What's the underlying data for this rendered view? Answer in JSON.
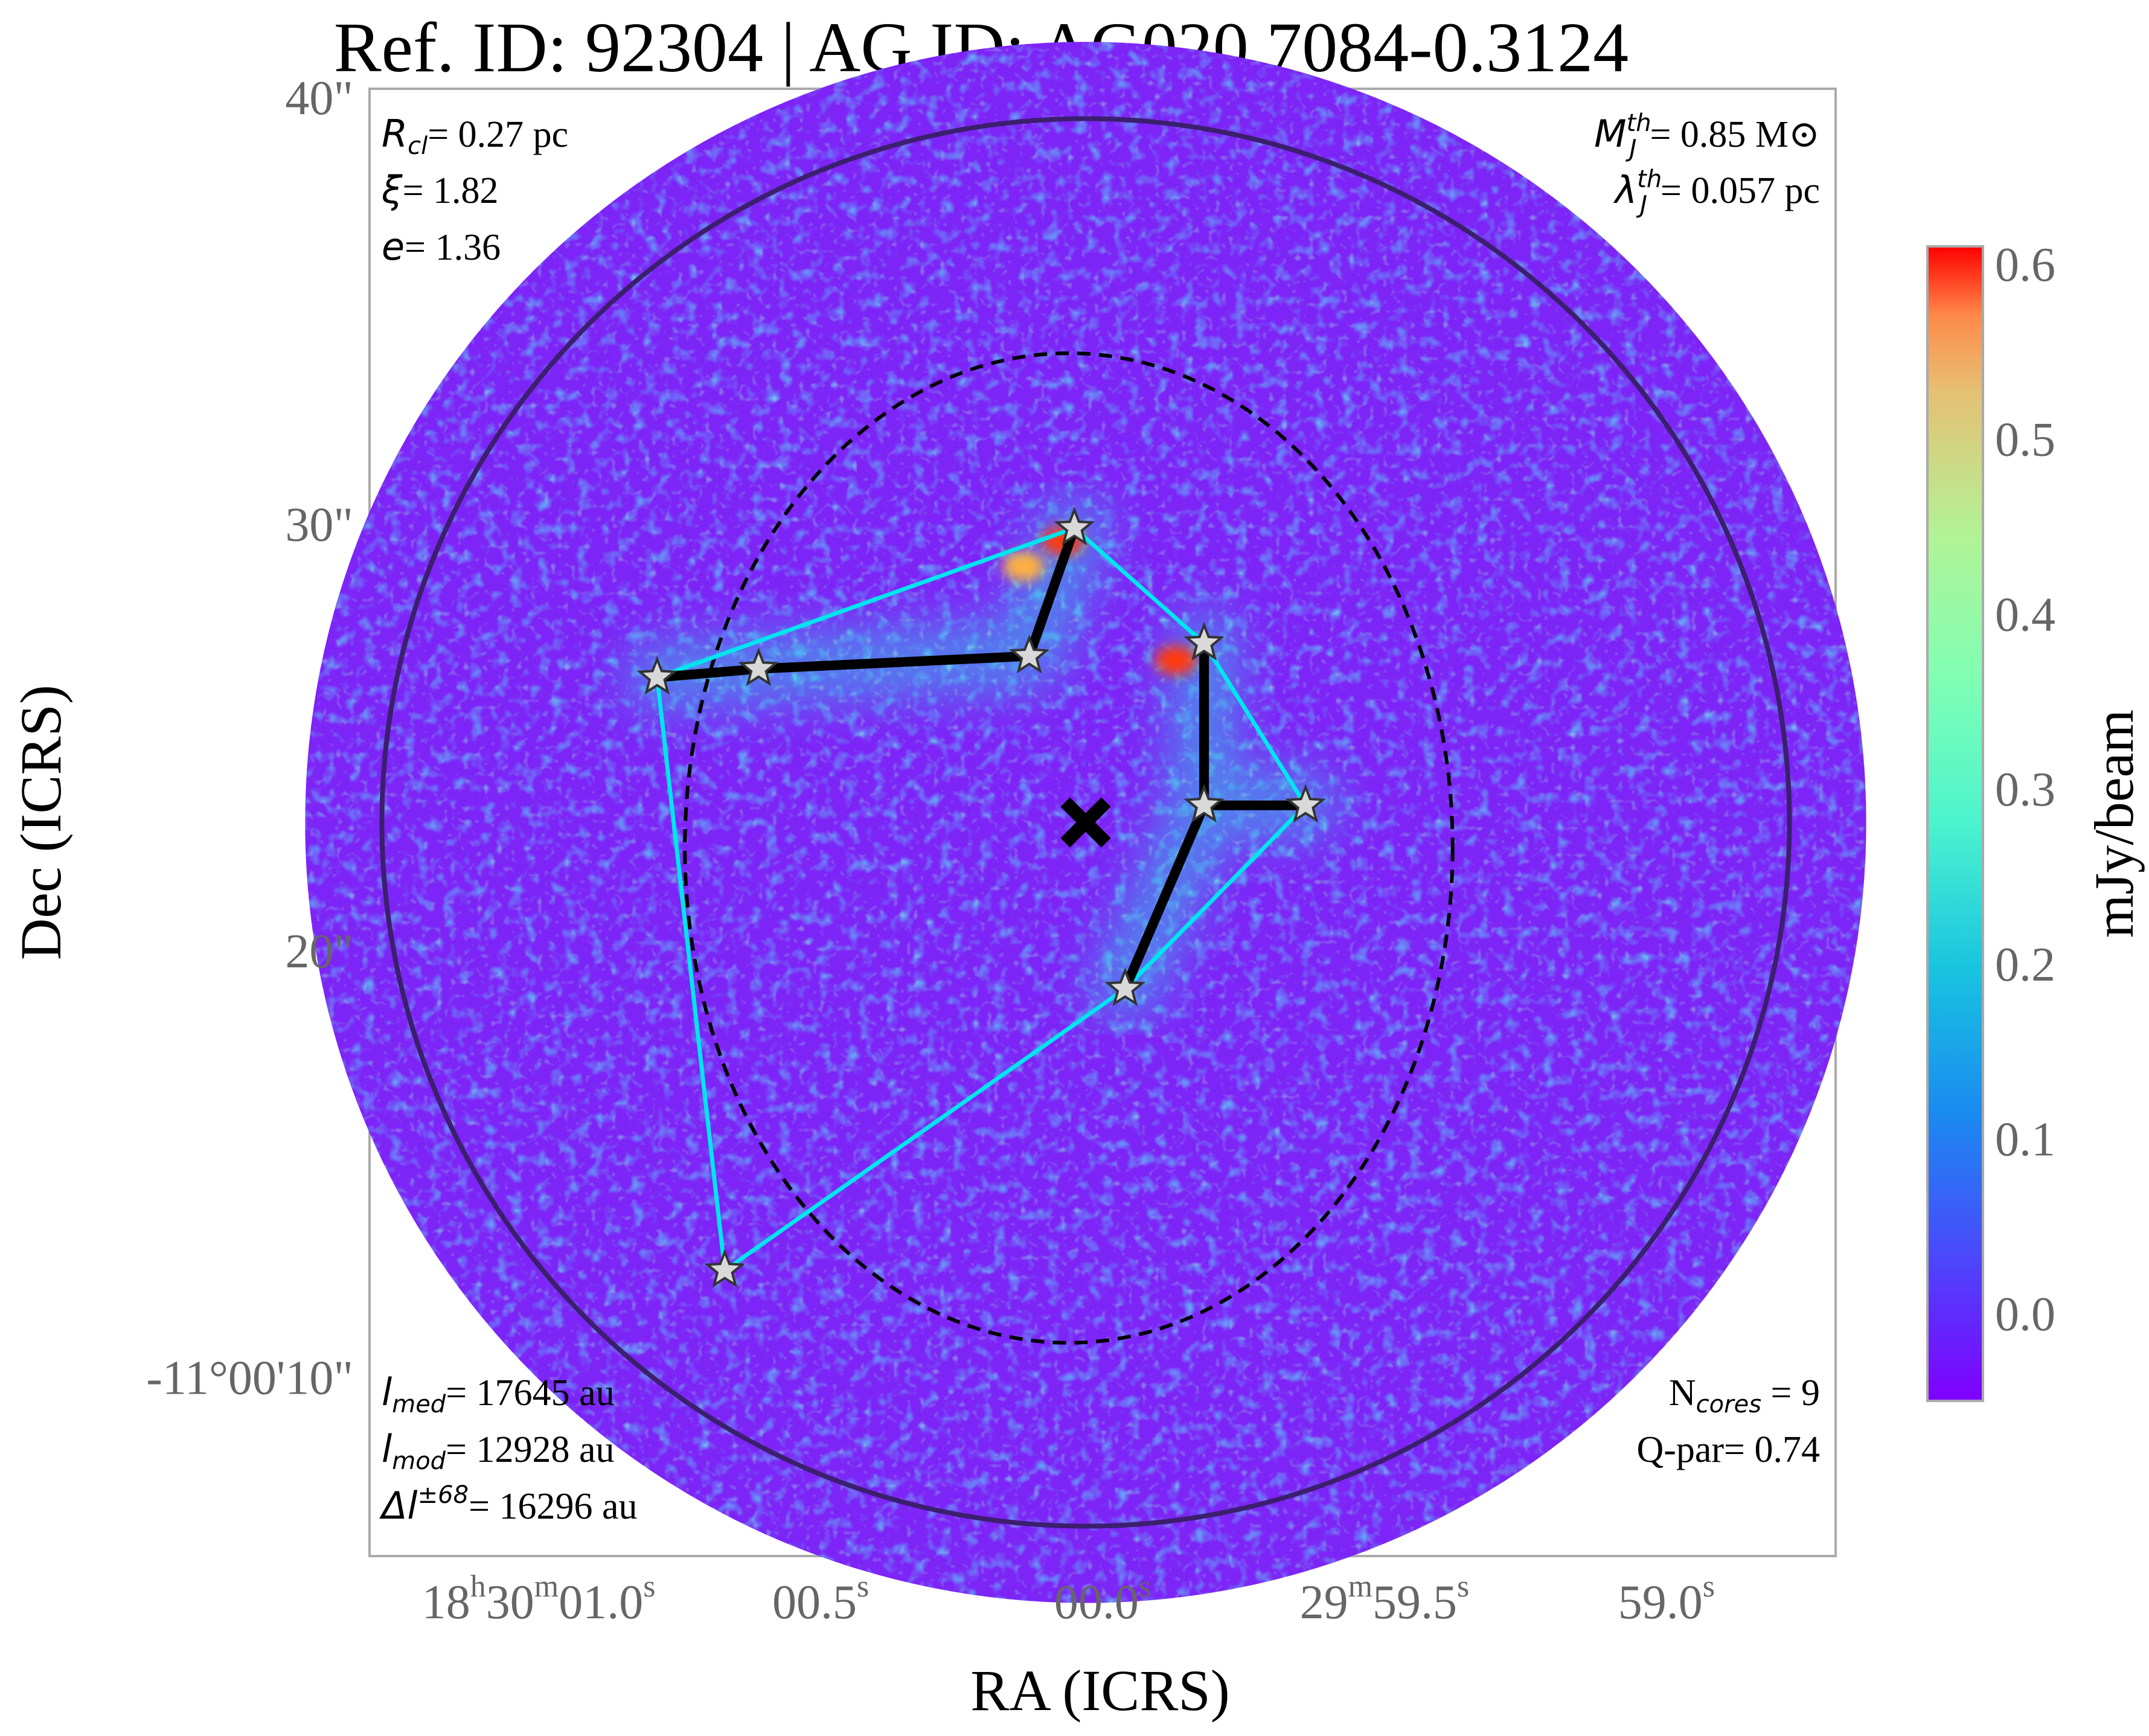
{
  "chart_data": {
    "type": "heatmap",
    "title": "Ref. ID: 92304 | AG ID: AG020.7084-0.3124",
    "xlabel": "RA (ICRS)",
    "ylabel": "Dec (ICRS)",
    "x_ticks": [
      {
        "h": "18",
        "m": "30",
        "s": "01.0",
        "ra_s": 61.0
      },
      {
        "s": "00.5",
        "ra_s": 60.5
      },
      {
        "s": "00.0",
        "ra_s": 60.0
      },
      {
        "m": "29",
        "s": "59.5",
        "ra_s": 59.5
      },
      {
        "s": "59.0",
        "ra_s": 59.0
      }
    ],
    "y_ticks": [
      {
        "label": "-11°00'10\"",
        "dec_arcsec": 10
      },
      {
        "label": "20\"",
        "dec_arcsec": 20
      },
      {
        "label": "30\"",
        "dec_arcsec": 30
      },
      {
        "label": "40\"",
        "dec_arcsec": 40
      }
    ],
    "xlim": [
      61.3,
      58.7
    ],
    "ylim": [
      40.2,
      5.8
    ],
    "colorbar": {
      "label": "mJy/beam",
      "range": [
        -0.05,
        0.61
      ],
      "ticks": [
        "0.0",
        "0.1",
        "0.2",
        "0.3",
        "0.4",
        "0.5",
        "0.6"
      ],
      "tick_values": [
        0.0,
        0.1,
        0.2,
        0.3,
        0.4,
        0.5,
        0.6
      ],
      "colormap": "rainbow"
    },
    "field_of_view": {
      "center_ra_s": 60.03,
      "center_dec_arcsec": 23.0,
      "radius_arcsec": 18.3
    },
    "cluster_circle": {
      "center_ra_s": 60.03,
      "center_dec_arcsec": 23.0,
      "radius_arcsec": 16.5,
      "color": "#3b1f6e"
    },
    "cluster_center": {
      "ra_s": 60.03,
      "dec_arcsec": 23.0,
      "marker": "x"
    },
    "ellipse": {
      "center_ra_s": 60.06,
      "center_dec_arcsec": 22.4,
      "semi_ra_arcsec": 9.0,
      "semi_dec_arcsec": 11.6,
      "style": "dashed"
    },
    "cores": [
      {
        "id": 1,
        "ra_s": 60.67,
        "dec_arcsec": 12.5
      },
      {
        "id": 2,
        "ra_s": 59.96,
        "dec_arcsec": 19.1
      },
      {
        "id": 3,
        "ra_s": 59.82,
        "dec_arcsec": 23.4
      },
      {
        "id": 4,
        "ra_s": 59.64,
        "dec_arcsec": 23.4
      },
      {
        "id": 5,
        "ra_s": 59.82,
        "dec_arcsec": 27.2
      },
      {
        "id": 6,
        "ra_s": 60.79,
        "dec_arcsec": 26.4
      },
      {
        "id": 7,
        "ra_s": 60.61,
        "dec_arcsec": 26.6
      },
      {
        "id": 8,
        "ra_s": 60.13,
        "dec_arcsec": 26.9
      },
      {
        "id": 9,
        "ra_s": 60.05,
        "dec_arcsec": 29.9
      }
    ],
    "convex_hull": [
      1,
      2,
      4,
      5,
      9,
      6
    ],
    "mst_edges": [
      [
        2,
        3
      ],
      [
        3,
        4
      ],
      [
        3,
        5
      ],
      [
        6,
        7
      ],
      [
        7,
        8
      ],
      [
        8,
        9
      ]
    ],
    "bright_emission": [
      {
        "ra_s": 60.07,
        "dec_arcsec": 29.6,
        "value": 0.58
      },
      {
        "ra_s": 59.87,
        "dec_arcsec": 26.8,
        "value": 0.55
      },
      {
        "ra_s": 60.14,
        "dec_arcsec": 29.0,
        "value": 0.45
      }
    ],
    "annotations": {
      "top_left": [
        {
          "sym": "R",
          "sub": "cl",
          "text": "= 0.27 pc"
        },
        {
          "sym": "ξ",
          "text": "= 1.82"
        },
        {
          "sym": "e",
          "text": "= 1.36"
        }
      ],
      "top_right": [
        {
          "sym": "M",
          "sub": "J",
          "sup": "th",
          "text": "= 0.85 M⊙"
        },
        {
          "sym": "λ",
          "sub": "J",
          "sup": "th",
          "text": "= 0.057 pc"
        }
      ],
      "bottom_left": [
        {
          "sym": "l",
          "sub": "med",
          "text": "= 17645 au"
        },
        {
          "sym": "l",
          "sub": "mod",
          "text": "= 12928 au"
        },
        {
          "sym": "Δl",
          "sup": "±68",
          "text": "= 16296 au"
        }
      ],
      "bottom_right": [
        {
          "sym": "N",
          "sub": "cores",
          "text": " = 9"
        },
        {
          "sym": "Q-par",
          "text": "= 0.74"
        }
      ]
    },
    "grid": false,
    "colors": {
      "hull": "#00e5ee",
      "mst": "#000000",
      "star_fill": "#d9d9d9",
      "frame": "#aaaaaa",
      "tick_text": "#666666"
    }
  }
}
